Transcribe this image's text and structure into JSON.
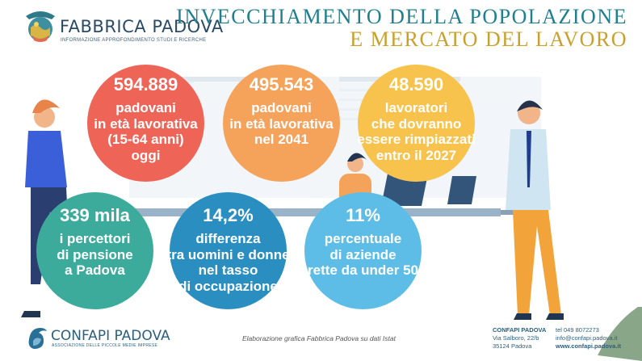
{
  "logo": {
    "title": "FABBRICA PADOVA",
    "subtitle": "INFORMAZIONE APPROFONDIMENTO STUDI E RICERCHE"
  },
  "headline": {
    "line1": "INVECCHIAMENTO DELLA POPOLAZIONE",
    "line2": "E MERCATO DEL LAVORO"
  },
  "stats": [
    {
      "value": "594.889",
      "lines": [
        "padovani",
        "in età lavorativa",
        "(15-64 anni)",
        "oggi"
      ],
      "color": "#ee6457"
    },
    {
      "value": "495.543",
      "lines": [
        "padovani",
        "in età lavorativa",
        "nel 2041"
      ],
      "color": "#f5a25a"
    },
    {
      "value": "48.590",
      "lines": [
        "lavoratori",
        "che dovranno",
        "essere rimpiazzati",
        "entro il 2027"
      ],
      "color": "#f7c34c"
    },
    {
      "value": "339 mila",
      "lines": [
        "i percettori",
        "di pensione",
        "a Padova"
      ],
      "color": "#3dab9b"
    },
    {
      "value": "14,2%",
      "lines": [
        "differenza",
        "tra uomini e donne",
        "nel tasso",
        "di occupazione"
      ],
      "color": "#2a8fc0"
    },
    {
      "value": "11%",
      "lines": [
        "percentuale",
        "di aziende",
        "rette da under 50"
      ],
      "color": "#5dbde6"
    }
  ],
  "credit": "Elaborazione grafica Fabbrica Padova su dati Istat",
  "footer": {
    "logo_title": "CONFAPI PADOVA",
    "logo_subtitle": "ASSOCIAZIONE DELLE PICCOLE MEDIE IMPRESE",
    "org": "CONFAPI PADOVA",
    "address1": "Via Salboro, 22/b",
    "address2": "35124 Padova",
    "tel": "tel 049 8072273",
    "email": "info@confapi.padova.it",
    "web": "www.confapi.padova.it"
  },
  "icons": [
    "fabbrica-padova-logo-icon",
    "confapi-logo-icon"
  ]
}
